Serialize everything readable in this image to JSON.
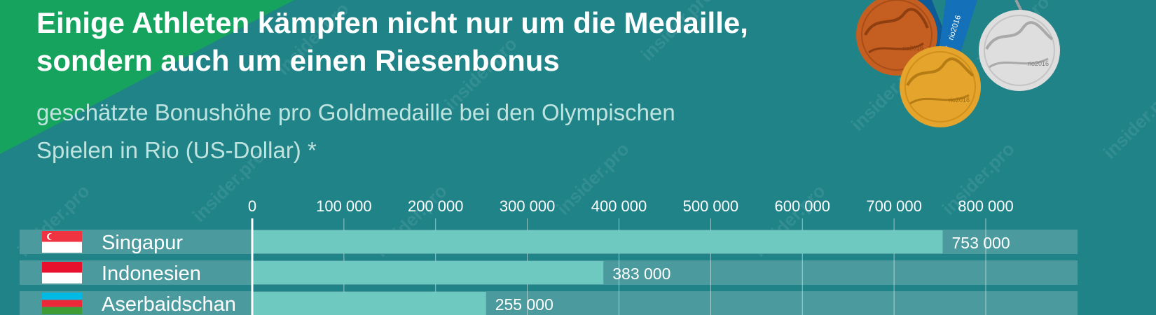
{
  "title_lines": [
    "Einige Athleten kämpfen nicht nur um die Medaille,",
    "sondern auch um einen Riesenbonus"
  ],
  "subtitle_lines": [
    "geschätzte Bonushöhe pro Goldmedaille  bei den Olympischen",
    "Spielen in Rio (US-Dollar) *"
  ],
  "watermark": "insider.pro",
  "medals": {
    "label": "rio2016",
    "ribbon_label": "rio2016"
  },
  "colors": {
    "background": "#1f8388",
    "corner": "#16a35d",
    "bar": "#6ec9c1",
    "row_background": "#4a9a9e",
    "gold": "#e5a42b",
    "silver": "#dedede",
    "bronze": "#c45f21",
    "ribbon": "#1470b8"
  },
  "chart_data": {
    "type": "bar",
    "orientation": "horizontal",
    "xlim": [
      0,
      800000
    ],
    "ticks": [
      0,
      100000,
      200000,
      300000,
      400000,
      500000,
      600000,
      700000,
      800000
    ],
    "tick_labels": [
      "0",
      "100 000",
      "200 000",
      "300 000",
      "400 000",
      "500 000",
      "600 000",
      "700 000",
      "800 000"
    ],
    "grid": true,
    "categories": [
      "Singapur",
      "Indonesien",
      "Aserbaidschan"
    ],
    "values": [
      753000,
      383000,
      255000
    ],
    "value_labels": [
      "753 000",
      "383 000",
      "255 000"
    ],
    "flags": [
      "singapore-flag",
      "indonesia-flag",
      "azerbaijan-flag"
    ]
  }
}
